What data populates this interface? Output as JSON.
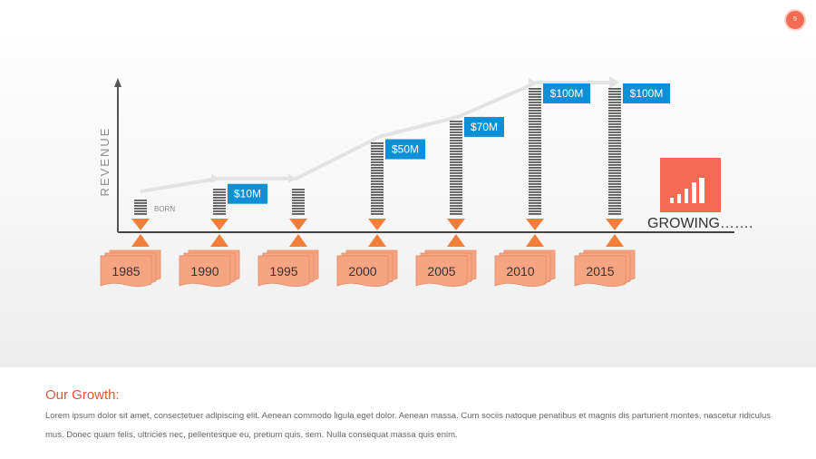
{
  "page_number": "5",
  "chart_data": {
    "type": "timeline-bar",
    "title": "",
    "ylabel": "REVENUE",
    "categories": [
      "1985",
      "1990",
      "1995",
      "2000",
      "2005",
      "2010",
      "2015"
    ],
    "values": [
      0,
      10,
      10,
      50,
      70,
      100,
      100
    ],
    "value_labels": [
      "",
      "$10M",
      "",
      "$50M",
      "$70M",
      "$100M",
      "$100M"
    ],
    "start_label": "BORN",
    "end_label": "GROWING…….",
    "ylim": [
      0,
      100
    ],
    "units": "$M"
  },
  "colors": {
    "accent": "#f07f3c",
    "label_box": "#0e8fd6",
    "year_card": "#f7a482",
    "growing_icon": "#f26b52",
    "trend_arrow": "#e3e3e3"
  },
  "icons": {
    "growing": "bar-chart-icon"
  },
  "footer": {
    "title": "Our Growth:",
    "body": "Lorem ipsum dolor sit amet, consectetuer adipiscing elit. Aenean commodo ligula eget dolor. Aenean massa. Cum sociis natoque penatibus et magnis dis parturient montes, nascetur ridiculus mus. Donec quam felis, ultricies nec, pellentesque eu, pretium quis, sem. Nulla consequat massa quis enim."
  }
}
